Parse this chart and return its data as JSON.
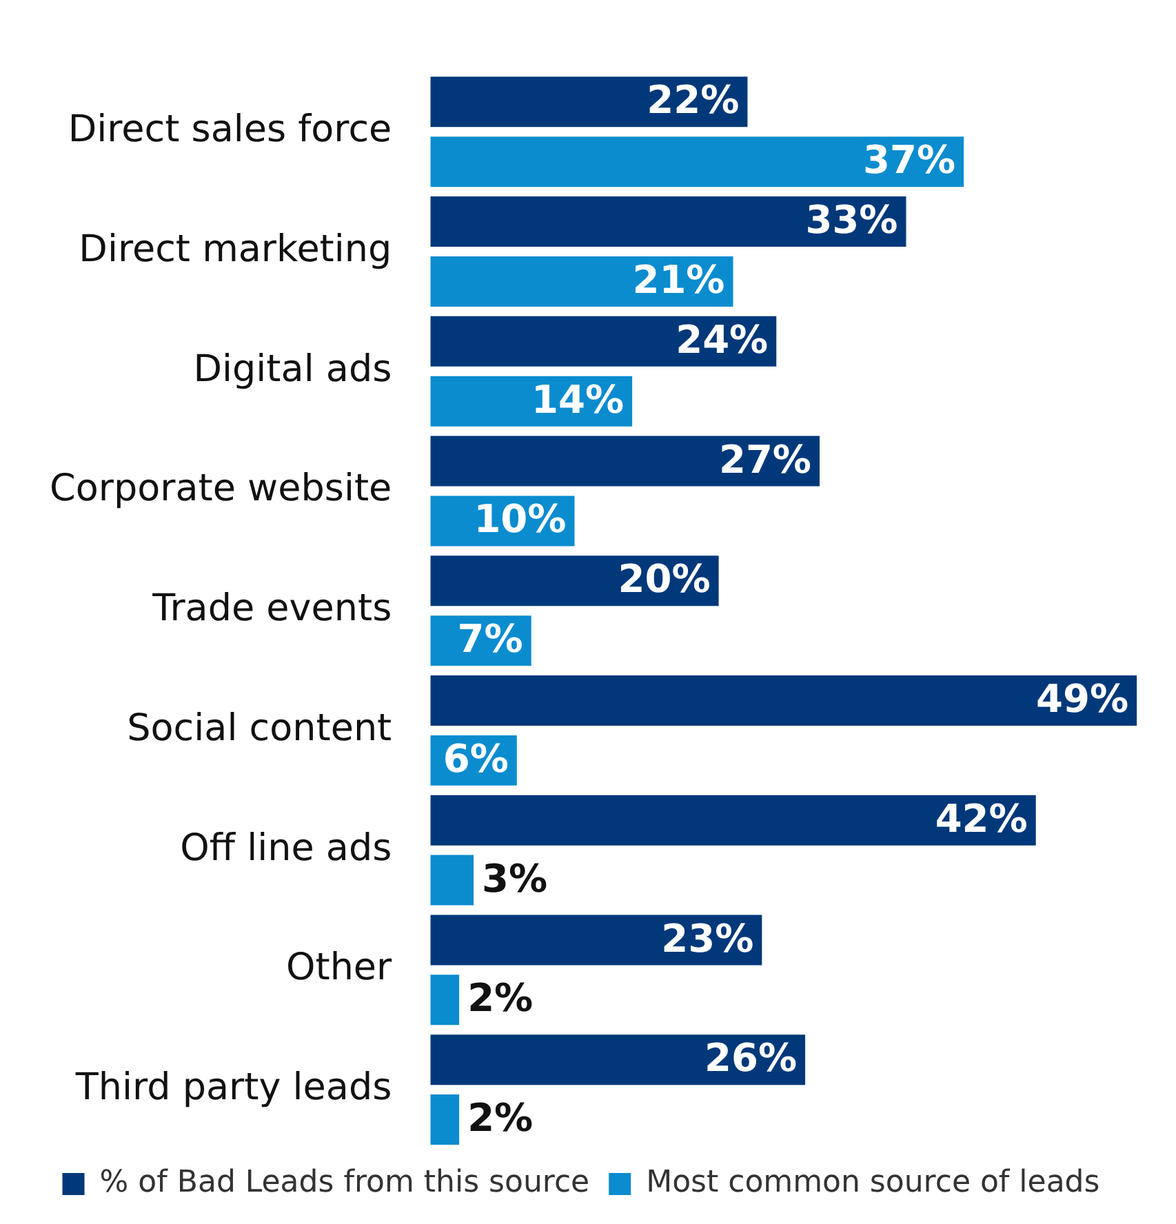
{
  "chart_data": {
    "type": "bar",
    "orientation": "horizontal",
    "categories": [
      "Direct sales force",
      "Direct marketing",
      "Digital ads",
      "Corporate website",
      "Trade events",
      "Social content",
      "Off line ads",
      "Other",
      "Third party leads"
    ],
    "series": [
      {
        "name": "% of Bad Leads from this source",
        "color": "#00387a",
        "values": [
          22,
          33,
          24,
          27,
          20,
          49,
          42,
          23,
          26
        ],
        "value_labels": [
          "22%",
          "33%",
          "24%",
          "27%",
          "20%",
          "49%",
          "42%",
          "23%",
          "26%"
        ]
      },
      {
        "name": "Most common source of leads",
        "color": "#0a8ccf",
        "values": [
          37,
          21,
          14,
          10,
          7,
          6,
          3,
          2,
          2
        ],
        "value_labels": [
          "37%",
          "21%",
          "14%",
          "10%",
          "7%",
          "6%",
          "3%",
          "2%",
          "2%"
        ]
      }
    ],
    "grid": false,
    "legend": "bottom"
  }
}
